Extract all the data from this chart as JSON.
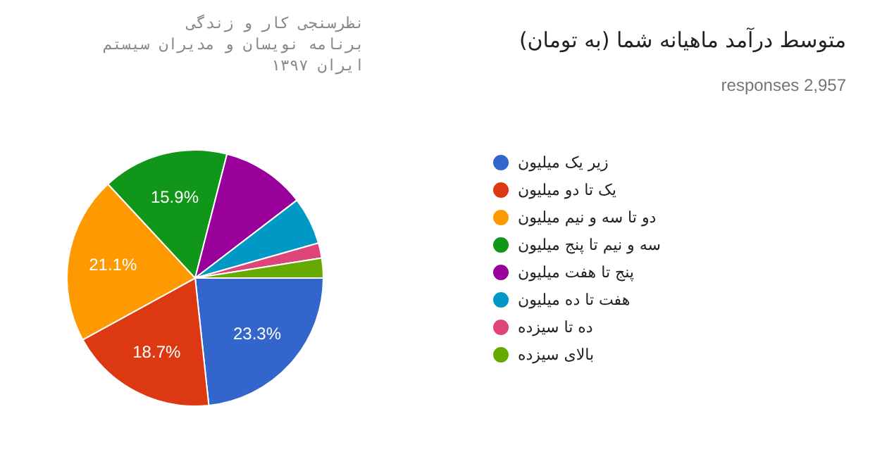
{
  "chart_data": {
    "type": "pie",
    "title": "متوسط درآمد ماهیانه شما (به تومان)",
    "subtitle": "responses 2,957",
    "annotations": [
      "نظرسنجی کار و زندگی",
      "برنامه نویسان و مدیران سیستم",
      "ایران ۱۳۹۷"
    ],
    "categories": [
      "زیر یک میلیون",
      "یک تا دو میلیون",
      "دو تا سه و نیم میلیون",
      "سه و نیم تا پنج میلیون",
      "پنج تا هفت میلیون",
      "هفت تا ده میلیون",
      "ده تا سیزده",
      "بالای سیزده"
    ],
    "values": [
      23.3,
      18.7,
      21.1,
      15.9,
      10.6,
      6.0,
      1.9,
      2.5
    ],
    "value_labels": [
      "23.3%",
      "18.7%",
      "21.1%",
      "15.9%",
      null,
      null,
      null,
      null
    ],
    "colors": [
      "#3366cc",
      "#dc3912",
      "#ff9900",
      "#109618",
      "#990099",
      "#0099c6",
      "#dd4477",
      "#66aa00"
    ],
    "legend": "right"
  }
}
